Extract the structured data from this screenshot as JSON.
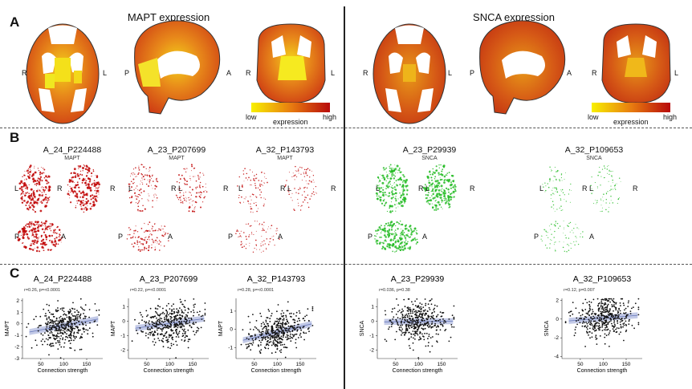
{
  "figure": {
    "panel_a": {
      "letter": "A",
      "left_title": "MAPT expression",
      "right_title": "SNCA expression",
      "colorbar": {
        "low": "low",
        "high": "high",
        "label": "expression",
        "color_low": "#f8f000",
        "color_mid": "#e87d10",
        "color_high": "#b80a0a"
      },
      "orientation": {
        "r": "R",
        "l": "L",
        "p": "P",
        "a": "A"
      }
    },
    "panel_b": {
      "letter": "B",
      "items": [
        {
          "title": "A_24_P224488",
          "gene": "MAPT"
        },
        {
          "title": "A_23_P207699",
          "gene": "MAPT"
        },
        {
          "title": "A_32_P143793",
          "gene": "MAPT"
        },
        {
          "title": "A_23_P29939",
          "gene": "SNCA"
        },
        {
          "title": "A_32_P109653",
          "gene": "SNCA"
        }
      ],
      "colors": {
        "mapt": "#c00000",
        "snca": "#22bb22"
      }
    },
    "panel_c": {
      "letter": "C",
      "xlabel": "Connection strength"
    }
  },
  "chart_data": [
    {
      "type": "scatter",
      "title": "A_24_P224488",
      "stat": "r=0.26, p=<0.0001",
      "xlabel": "Connection strength",
      "ylabel": "MAPT",
      "xticks": [
        50,
        100,
        150
      ],
      "yticks": [
        -3,
        -2,
        -1,
        0,
        1,
        2
      ],
      "xlim": [
        10,
        185
      ],
      "ylim": [
        -3,
        2.2
      ],
      "fit": {
        "slope": 0.0075,
        "intercept": -0.9
      }
    },
    {
      "type": "scatter",
      "title": "A_23_P207699",
      "stat": "r=0.22, p=<0.0001",
      "xlabel": "Connection strength",
      "ylabel": "MAPT",
      "xticks": [
        50,
        100,
        150
      ],
      "yticks": [
        -2,
        -1,
        0,
        1
      ],
      "xlim": [
        10,
        185
      ],
      "ylim": [
        -2.6,
        1.6
      ],
      "fit": {
        "slope": 0.0045,
        "intercept": -0.6
      }
    },
    {
      "type": "scatter",
      "title": "A_32_P143793",
      "stat": "r=0.28, p=<0.0001",
      "xlabel": "Connection strength",
      "ylabel": "MAPT",
      "xticks": [
        50,
        100,
        150
      ],
      "yticks": [
        -1,
        0,
        1
      ],
      "xlim": [
        10,
        185
      ],
      "ylim": [
        -1.6,
        1.7
      ],
      "fit": {
        "slope": 0.006,
        "intercept": -0.75
      }
    },
    {
      "type": "scatter",
      "title": "A_23_P29939",
      "stat": "r=0.036, p=0.38",
      "xlabel": "Connection strength",
      "ylabel": "SNCA",
      "xticks": [
        50,
        100,
        150
      ],
      "yticks": [
        -2,
        -1,
        0,
        1
      ],
      "xlim": [
        10,
        185
      ],
      "ylim": [
        -2.6,
        1.6
      ],
      "fit": {
        "slope": 0.0003,
        "intercept": -0.05
      }
    },
    {
      "type": "scatter",
      "title": "A_32_P109653",
      "stat": "r=0.12, p=0.007",
      "xlabel": "Connection strength",
      "ylabel": "SNCA",
      "xticks": [
        50,
        100,
        150
      ],
      "yticks": [
        -4,
        -2,
        0,
        2
      ],
      "xlim": [
        10,
        185
      ],
      "ylim": [
        -4.2,
        2.2
      ],
      "fit": {
        "slope": 0.004,
        "intercept": -0.3
      }
    }
  ]
}
